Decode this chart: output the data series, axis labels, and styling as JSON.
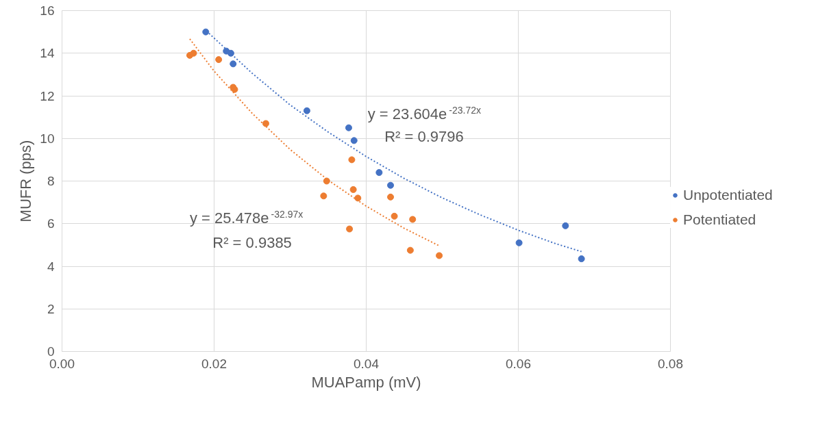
{
  "chart_data": {
    "type": "scatter",
    "xlabel": "MUAPamp (mV)",
    "ylabel": "MUFR (pps)",
    "xlim": [
      0,
      0.08
    ],
    "xticks": [
      {
        "value": 0,
        "label": "0.00"
      },
      {
        "value": 0.02,
        "label": "0.02"
      },
      {
        "value": 0.04,
        "label": "0.04"
      },
      {
        "value": 0.06,
        "label": "0.06"
      },
      {
        "value": 0.08,
        "label": "0.08"
      }
    ],
    "ylim": [
      0,
      16
    ],
    "yticks": [
      0,
      2,
      4,
      6,
      8,
      10,
      12,
      14,
      16
    ],
    "grid": true,
    "legend": "right",
    "marker": "circle",
    "series": [
      {
        "name": "Unpotentiated",
        "color": "#4472c4",
        "x": [
          0.0189,
          0.0216,
          0.0222,
          0.0225,
          0.0322,
          0.0377,
          0.0384,
          0.0417,
          0.0432,
          0.0601,
          0.0662,
          0.0683
        ],
        "values": [
          15.0,
          14.1,
          14.0,
          13.5,
          11.3,
          10.5,
          9.9,
          8.4,
          7.8,
          5.1,
          5.9,
          4.35
        ]
      },
      {
        "name": "Potentiated",
        "color": "#ed7d31",
        "x": [
          0.0168,
          0.0173,
          0.0206,
          0.0225,
          0.0227,
          0.0268,
          0.0381,
          0.0348,
          0.0344,
          0.0383,
          0.0389,
          0.0432,
          0.0437,
          0.0461,
          0.0378,
          0.0458,
          0.0496
        ],
        "values": [
          13.9,
          14.0,
          13.7,
          12.4,
          12.3,
          10.7,
          9.0,
          8.0,
          7.3,
          7.6,
          7.2,
          7.25,
          6.35,
          6.2,
          5.75,
          4.75,
          4.5
        ]
      },
      {
        "type": "line",
        "line_style": "dotted",
        "marker": "none",
        "color": "#4472c4",
        "x": [
          0.019,
          0.025,
          0.03,
          0.035,
          0.04,
          0.045,
          0.05,
          0.055,
          0.06,
          0.065,
          0.0683
        ],
        "values": [
          15.04,
          13.06,
          11.57,
          10.3,
          9.15,
          8.12,
          7.21,
          6.41,
          5.69,
          5.05,
          4.69
        ]
      },
      {
        "type": "line",
        "line_style": "dotted",
        "marker": "none",
        "color": "#ed7d31",
        "x": [
          0.0168,
          0.02,
          0.025,
          0.03,
          0.035,
          0.04,
          0.045,
          0.0496
        ],
        "values": [
          14.67,
          13.16,
          11.18,
          9.48,
          8.04,
          6.82,
          5.78,
          4.96
        ]
      }
    ],
    "annotations": [
      "y = 23.604e$^{-23.72x}$",
      "R² = 0.9796",
      "y = 25.478e$^{-32.97x}$",
      "R² = 0.9385"
    ]
  }
}
